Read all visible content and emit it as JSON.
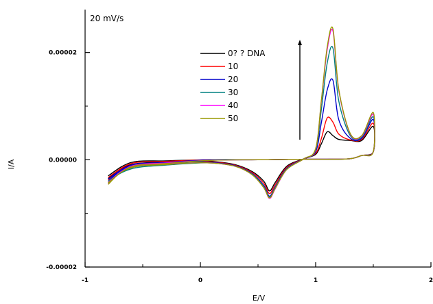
{
  "chart_data": {
    "type": "line",
    "annotation": "20 mV/s",
    "xlabel": "E/V",
    "ylabel": "I/A",
    "xlim": [
      -1,
      2
    ],
    "ylim": [
      -2e-05,
      2.8e-05
    ],
    "x_ticks": [
      -1,
      0,
      1,
      2
    ],
    "x_tick_labels": [
      "-1",
      "0",
      "1",
      "2"
    ],
    "y_ticks": [
      -2e-05,
      0,
      2e-05
    ],
    "y_tick_labels": [
      "-0.00002",
      "0.00000",
      "0.00002"
    ],
    "grid": false,
    "legend_position": "top-center",
    "arrow_direction": "up",
    "series": [
      {
        "name": "0? ?  DNA",
        "color": "#000000",
        "peak": 5.2e-06,
        "x": [
          -0.8,
          -0.7,
          -0.6,
          -0.5,
          -0.3,
          -0.1,
          0.1,
          0.3,
          0.45,
          0.55,
          0.6,
          0.65,
          0.75,
          0.9,
          1.0,
          1.05,
          1.1,
          1.15,
          1.2,
          1.3,
          1.4,
          1.5,
          1.5,
          1.4,
          1.3,
          1.1,
          0.9,
          0.5,
          0.1,
          -0.3,
          -0.6,
          -0.8
        ],
        "y": [
          -3.5e-06,
          -1.8e-06,
          -9e-07,
          -6e-07,
          -4e-07,
          -2e-07,
          -3e-07,
          -9e-07,
          -2.2e-06,
          -4e-06,
          -5.8e-06,
          -4.2e-06,
          -1.2e-06,
          2e-07,
          1e-06,
          3e-06,
          5.2e-06,
          4.5e-06,
          3.8e-06,
          3.6e-06,
          3.6e-06,
          6.2e-06,
          1.5e-06,
          8e-07,
          2e-07,
          1e-07,
          1e-07,
          0.0,
          0.0,
          -2e-07,
          -5e-07,
          -3e-06
        ]
      },
      {
        "name": "10",
        "color": "#ff0000",
        "peak": 7.8e-06,
        "x": [
          -0.8,
          -0.7,
          -0.6,
          -0.5,
          -0.3,
          -0.1,
          0.1,
          0.3,
          0.45,
          0.55,
          0.6,
          0.65,
          0.75,
          0.9,
          1.0,
          1.05,
          1.1,
          1.15,
          1.2,
          1.3,
          1.4,
          1.5,
          1.5,
          1.4,
          1.3,
          1.1,
          0.9,
          0.5,
          0.1,
          -0.3,
          -0.6,
          -0.8
        ],
        "y": [
          -3.8e-06,
          -2e-06,
          -1e-06,
          -7e-07,
          -5e-07,
          -3e-07,
          -4e-07,
          -1e-06,
          -2.4e-06,
          -4.4e-06,
          -6.3e-06,
          -4.6e-06,
          -1.4e-06,
          2e-07,
          1.2e-06,
          4e-06,
          7.8e-06,
          7e-06,
          4.8e-06,
          3.7e-06,
          3.8e-06,
          6.8e-06,
          1.5e-06,
          8e-07,
          2e-07,
          1e-07,
          1e-07,
          0.0,
          0.0,
          -3e-07,
          -7e-07,
          -3.3e-06
        ]
      },
      {
        "name": "20",
        "color": "#0000cc",
        "peak": 1.48e-05,
        "x": [
          -0.8,
          -0.7,
          -0.6,
          -0.5,
          -0.3,
          -0.1,
          0.1,
          0.3,
          0.45,
          0.55,
          0.6,
          0.65,
          0.75,
          0.9,
          1.0,
          1.05,
          1.1,
          1.15,
          1.2,
          1.3,
          1.4,
          1.5,
          1.5,
          1.4,
          1.3,
          1.1,
          0.9,
          0.5,
          0.1,
          -0.3,
          -0.6,
          -0.8
        ],
        "y": [
          -4e-06,
          -2.2e-06,
          -1.2e-06,
          -8e-07,
          -6e-07,
          -4e-07,
          -5e-07,
          -1.1e-06,
          -2.6e-06,
          -4.8e-06,
          -6.8e-06,
          -5e-06,
          -1.6e-06,
          2e-07,
          1.5e-06,
          7e-06,
          1.3e-05,
          1.48e-05,
          7.5e-06,
          4e-06,
          4e-06,
          7.5e-06,
          1.5e-06,
          8e-07,
          2e-07,
          1e-07,
          1e-07,
          0.0,
          0.0,
          -5e-07,
          -1e-06,
          -3.6e-06
        ]
      },
      {
        "name": "30",
        "color": "#008080",
        "peak": 2.08e-05,
        "x": [
          -0.8,
          -0.7,
          -0.6,
          -0.5,
          -0.3,
          -0.1,
          0.1,
          0.3,
          0.45,
          0.55,
          0.6,
          0.65,
          0.75,
          0.9,
          1.0,
          1.05,
          1.1,
          1.15,
          1.2,
          1.3,
          1.4,
          1.5,
          1.5,
          1.4,
          1.3,
          1.1,
          0.9,
          0.5,
          0.1,
          -0.3,
          -0.6,
          -0.8
        ],
        "y": [
          -4.3e-06,
          -2.6e-06,
          -1.7e-06,
          -1.3e-06,
          -1e-06,
          -7e-07,
          -6e-07,
          -1.2e-06,
          -2.7e-06,
          -5e-06,
          -7e-06,
          -5.2e-06,
          -1.7e-06,
          2e-07,
          1.8e-06,
          9.5e-06,
          1.8e-05,
          2.08e-05,
          1.1e-05,
          4.5e-06,
          4.2e-06,
          8e-06,
          1.5e-06,
          8e-07,
          2e-07,
          1e-07,
          1e-07,
          0.0,
          -1e-07,
          -8e-07,
          -1.5e-06,
          -4e-06
        ]
      },
      {
        "name": "40",
        "color": "#ff00ff",
        "peak": 2.4e-05,
        "x": [
          -0.8,
          -0.7,
          -0.6,
          -0.5,
          -0.3,
          -0.1,
          0.1,
          0.3,
          0.45,
          0.55,
          0.6,
          0.65,
          0.75,
          0.9,
          1.0,
          1.05,
          1.1,
          1.15,
          1.2,
          1.3,
          1.4,
          1.5,
          1.5,
          1.4,
          1.3,
          1.1,
          0.9,
          0.5,
          0.1,
          -0.3,
          -0.6,
          -0.8
        ],
        "y": [
          -4.5e-06,
          -2.4e-06,
          -1.4e-06,
          -1e-06,
          -8e-07,
          -6e-07,
          -6e-07,
          -1.2e-06,
          -2.8e-06,
          -5.2e-06,
          -7.2e-06,
          -5.4e-06,
          -1.8e-06,
          2e-07,
          2e-06,
          1.1e-05,
          2.05e-05,
          2.4e-05,
          1.3e-05,
          4.8e-06,
          4.4e-06,
          8.5e-06,
          1.5e-06,
          8e-07,
          2e-07,
          1e-07,
          1e-07,
          0.0,
          -1e-07,
          -6e-07,
          -1.2e-06,
          -4.2e-06
        ]
      },
      {
        "name": "50",
        "color": "#999900",
        "peak": 2.44e-05,
        "x": [
          -0.8,
          -0.7,
          -0.6,
          -0.5,
          -0.3,
          -0.1,
          0.1,
          0.3,
          0.45,
          0.55,
          0.6,
          0.65,
          0.75,
          0.9,
          1.0,
          1.05,
          1.1,
          1.15,
          1.2,
          1.3,
          1.4,
          1.5,
          1.5,
          1.4,
          1.3,
          1.1,
          0.9,
          0.5,
          0.1,
          -0.3,
          -0.6,
          -0.8
        ],
        "y": [
          -4.6e-06,
          -2.5e-06,
          -1.5e-06,
          -1.1e-06,
          -9e-07,
          -6e-07,
          -6e-07,
          -1.2e-06,
          -2.8e-06,
          -5.2e-06,
          -7.1e-06,
          -5.3e-06,
          -1.8e-06,
          2e-07,
          2.1e-06,
          1.12e-05,
          2.1e-05,
          2.44e-05,
          1.32e-05,
          4.9e-06,
          4.5e-06,
          8.8e-06,
          1.5e-06,
          8e-07,
          2e-07,
          1e-07,
          1e-07,
          0.0,
          -1e-07,
          -7e-07,
          -1.3e-06,
          -4.3e-06
        ]
      }
    ]
  }
}
